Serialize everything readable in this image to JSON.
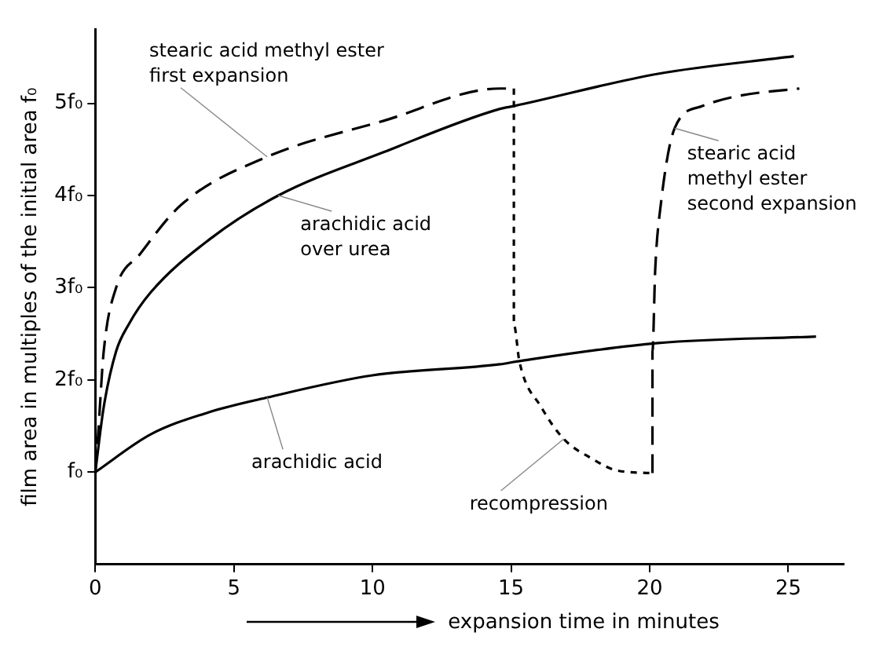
{
  "chart_data": {
    "type": "line",
    "xlabel": "expansion time in minutes",
    "ylabel": "film area in multiples of the initial area f₀",
    "xlim": [
      0,
      27
    ],
    "ylim": [
      0,
      5.8
    ],
    "xticks": [
      0,
      5,
      10,
      15,
      20,
      25
    ],
    "yticks": [
      {
        "value": 1,
        "label": "f₀"
      },
      {
        "value": 2,
        "label": "2f₀"
      },
      {
        "value": 3,
        "label": "3f₀"
      },
      {
        "value": 4,
        "label": "4f₀"
      },
      {
        "value": 5,
        "label": "5f₀"
      }
    ],
    "grid": false,
    "legend": false,
    "marker": "none",
    "series": [
      {
        "name": "stearic acid methyl ester first expansion",
        "color": "#000000",
        "line_style": "dashed",
        "x": [
          0,
          0.1,
          0.3,
          0.75,
          1.6,
          3.1,
          6.2,
          10.4,
          14.6,
          15.1
        ],
        "values": [
          1,
          1.4,
          2.3,
          3,
          3.36,
          3.9,
          4.42,
          4.81,
          5.16,
          5.16
        ]
      },
      {
        "name": "arachidic acid over urea",
        "color": "#000000",
        "line_style": "solid",
        "x": [
          0,
          0.3,
          0.75,
          1.2,
          2,
          4.1,
          6.6,
          10.4,
          14.6,
          15.1,
          20.3,
          25.2
        ],
        "values": [
          1,
          1.7,
          2.31,
          2.6,
          2.95,
          3.52,
          4,
          4.47,
          4.94,
          4.97,
          5.32,
          5.51
        ]
      },
      {
        "name": "arachidic acid",
        "color": "#000000",
        "line_style": "solid",
        "x": [
          0,
          2,
          4.1,
          6.2,
          10,
          14.6,
          15.2,
          20.3,
          26
        ],
        "values": [
          1,
          1.41,
          1.65,
          1.81,
          2.05,
          2.17,
          2.2,
          2.4,
          2.47
        ]
      },
      {
        "name": "recompression",
        "color": "#000000",
        "line_style": "dotted",
        "x": [
          15.1,
          15.1,
          15.3,
          16.1,
          16.9,
          17.9,
          18.8,
          20.1
        ],
        "values": [
          5.16,
          2.6,
          2.2,
          1.7,
          1.36,
          1.15,
          1.02,
          0.99
        ]
      },
      {
        "name": "stearic acid methyl ester second expansion",
        "color": "#000000",
        "line_style": "dashed",
        "x": [
          20.1,
          20.1,
          20.2,
          20.4,
          20.9,
          21.9,
          23.2,
          25.4
        ],
        "values": [
          0.99,
          2.31,
          3.2,
          3.9,
          4.73,
          4.97,
          5.08,
          5.16
        ]
      }
    ]
  }
}
